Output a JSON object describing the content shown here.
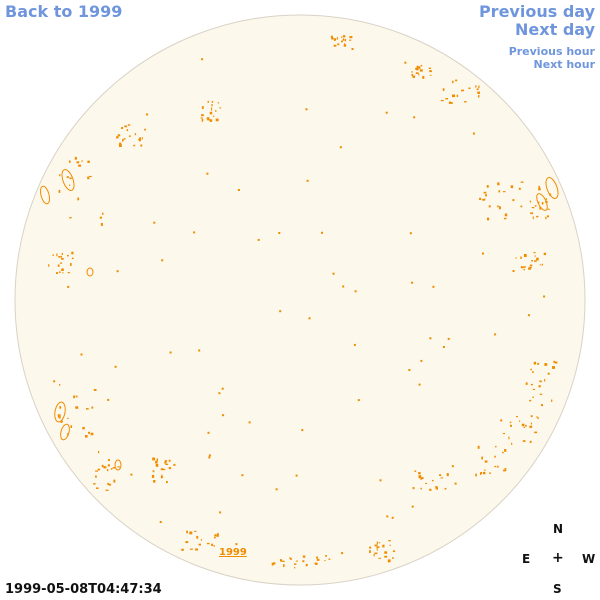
{
  "nav": {
    "back_label": "Back to 1999",
    "prev_day_label": "Previous day",
    "next_day_label": "Next day",
    "prev_hour_label": "Previous hour",
    "next_hour_label": "Next hour",
    "link_color": "#6f96dc"
  },
  "sun": {
    "disk_fill": "#fdf8ec",
    "disk_stroke": "#d9d2c6",
    "contour_color": "#f08c00",
    "year_label": "1999"
  },
  "timestamp": "1999-05-08T04:47:34",
  "compass": {
    "north": "N",
    "east": "E",
    "center": "+",
    "west": "W",
    "south": "S"
  }
}
